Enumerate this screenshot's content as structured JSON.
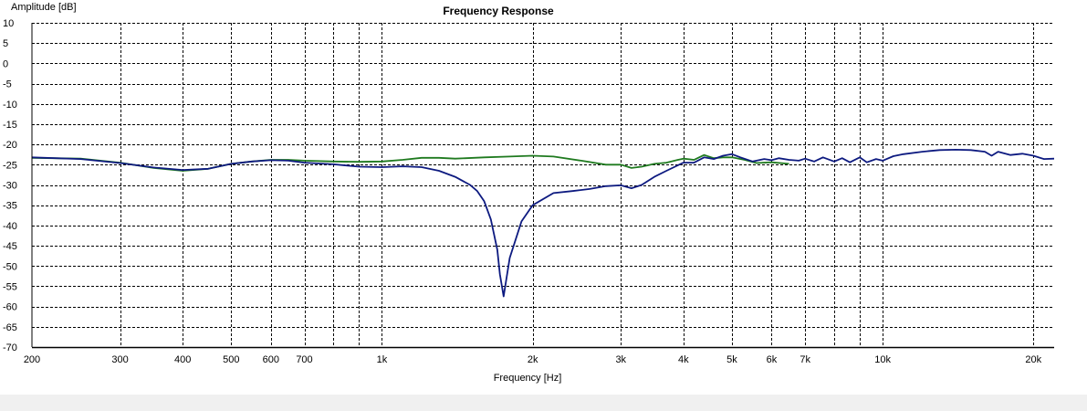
{
  "chart_data": {
    "type": "line",
    "title": "Frequency Response",
    "xlabel": "Frequency [Hz]",
    "ylabel": "Amplitude [dB]",
    "x_scale": "log",
    "xlim": [
      200,
      22000
    ],
    "ylim": [
      -70,
      10
    ],
    "grid": true,
    "x_ticks": [
      200,
      300,
      400,
      500,
      600,
      700,
      1000,
      2000,
      3000,
      4000,
      5000,
      6000,
      7000,
      10000,
      20000
    ],
    "x_tick_labels": [
      "200",
      "300",
      "400",
      "500",
      "600",
      "700",
      "1k",
      "2k",
      "3k",
      "4k",
      "5k",
      "6k",
      "7k",
      "10k",
      "20k"
    ],
    "x_minor_grid": [
      800,
      900,
      8000,
      9000
    ],
    "y_ticks": [
      10,
      5,
      0,
      -5,
      -10,
      -15,
      -20,
      -25,
      -30,
      -35,
      -40,
      -45,
      -50,
      -55,
      -60,
      -65,
      -70
    ],
    "y_tick_labels": [
      "10",
      "5",
      "0",
      "-5",
      "-10",
      "-15",
      "-20",
      "-25",
      "-30",
      "-35",
      "-40",
      "-45",
      "-50",
      "-55",
      "-60",
      "-65",
      "-70"
    ],
    "series": [
      {
        "color": "#1f7a1f",
        "x": [
          200,
          250,
          300,
          350,
          400,
          450,
          500,
          550,
          600,
          650,
          700,
          800,
          900,
          1000,
          1100,
          1200,
          1300,
          1400,
          1600,
          1800,
          2000,
          2200,
          2500,
          2800,
          3000,
          3150,
          3300,
          3500,
          3700,
          3900,
          4000,
          4200,
          4400,
          4600,
          4800,
          5000,
          5300,
          5600,
          6000,
          6500
        ],
        "y": [
          -23.3,
          -23.5,
          -24.5,
          -25.8,
          -26.5,
          -26.0,
          -24.8,
          -24.2,
          -23.8,
          -23.8,
          -24.0,
          -24.2,
          -24.3,
          -24.2,
          -23.8,
          -23.3,
          -23.3,
          -23.5,
          -23.2,
          -23.0,
          -22.8,
          -23.0,
          -24.0,
          -25.0,
          -25.0,
          -25.8,
          -25.5,
          -24.8,
          -24.5,
          -23.8,
          -23.5,
          -23.8,
          -22.6,
          -23.4,
          -23.2,
          -23.2,
          -23.8,
          -24.6,
          -24.4,
          -24.8
        ]
      },
      {
        "color": "#0d1a80",
        "x": [
          200,
          250,
          300,
          350,
          400,
          450,
          500,
          550,
          600,
          650,
          700,
          800,
          900,
          1000,
          1100,
          1200,
          1300,
          1400,
          1500,
          1550,
          1600,
          1650,
          1700,
          1720,
          1750,
          1800,
          1900,
          2000,
          2200,
          2400,
          2600,
          2800,
          3000,
          3150,
          3300,
          3500,
          3700,
          4000,
          4200,
          4400,
          4600,
          4800,
          5000,
          5200,
          5500,
          5800,
          6000,
          6200,
          6500,
          6800,
          7000,
          7300,
          7600,
          8000,
          8300,
          8600,
          9000,
          9300,
          9700,
          10000,
          10500,
          11000,
          12000,
          13000,
          14000,
          15000,
          16000,
          16500,
          17000,
          18000,
          19000,
          20000,
          21000,
          22000
        ],
        "y": [
          -23.2,
          -23.6,
          -24.6,
          -25.7,
          -26.3,
          -26.0,
          -24.8,
          -24.2,
          -23.9,
          -24.0,
          -24.5,
          -24.9,
          -25.5,
          -25.6,
          -25.4,
          -25.6,
          -26.5,
          -28.0,
          -30.0,
          -31.5,
          -34.0,
          -38.5,
          -46.0,
          -52.0,
          -57.5,
          -48.0,
          -39.0,
          -35.0,
          -32.0,
          -31.5,
          -31.0,
          -30.3,
          -30.1,
          -30.8,
          -30.0,
          -28.0,
          -26.5,
          -24.5,
          -24.5,
          -23.2,
          -23.6,
          -22.8,
          -22.4,
          -23.2,
          -24.2,
          -23.6,
          -23.9,
          -23.4,
          -23.8,
          -24.0,
          -23.5,
          -24.2,
          -23.2,
          -24.2,
          -23.4,
          -24.4,
          -23.2,
          -24.4,
          -23.6,
          -24.0,
          -22.9,
          -22.4,
          -21.8,
          -21.4,
          -21.3,
          -21.4,
          -21.8,
          -22.8,
          -21.8,
          -22.6,
          -22.3,
          -22.8,
          -23.6,
          -23.5
        ]
      }
    ]
  }
}
